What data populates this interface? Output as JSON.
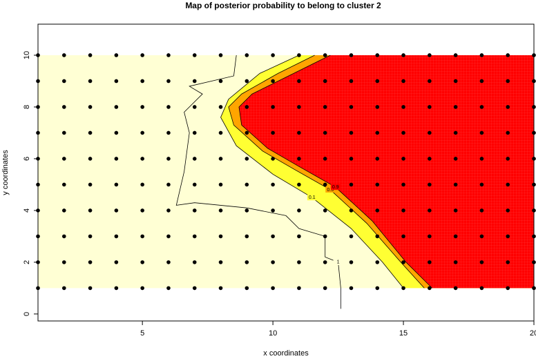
{
  "chart_data": {
    "type": "contour",
    "title": "Map of posterior probability to belong to cluster  2",
    "x_label": "x coordinates",
    "y_label": "y coordinates",
    "xlim": [
      1,
      20
    ],
    "ylim": [
      -0.27,
      11.2
    ],
    "xticks": [
      5,
      10,
      15,
      20
    ],
    "yticks": [
      0,
      2,
      4,
      6,
      8,
      10
    ],
    "grid_x": [
      1,
      2,
      3,
      4,
      5,
      6,
      7,
      8,
      9,
      10,
      11,
      12,
      13,
      14,
      15,
      16,
      17,
      18,
      19,
      20
    ],
    "grid_y": [
      1,
      2,
      3,
      4,
      5,
      6,
      7,
      8,
      9,
      10
    ],
    "point_color": "#000000",
    "background_color": "#ffffd4",
    "contours": [
      {
        "level": 0.1,
        "color": "#ffff33",
        "x": [
          11,
          9.5,
          8.3,
          8,
          8.6,
          10,
          11.5,
          13,
          14.2,
          15
        ],
        "y": [
          10,
          9.3,
          8.3,
          7.6,
          6.5,
          5.4,
          4.5,
          3.3,
          2,
          1
        ]
      },
      {
        "level": 0.5,
        "color": "#ffa500",
        "x": [
          11.6,
          10.2,
          8.8,
          8.3,
          8.5,
          9.6,
          10.8,
          12.2,
          13.6,
          14.9,
          15.8
        ],
        "y": [
          10,
          9.3,
          8.5,
          8,
          7.3,
          6.3,
          5.6,
          4.8,
          3.5,
          2,
          1
        ]
      },
      {
        "level": 0.9,
        "color": "#ff0000",
        "x": [
          12.2,
          10.8,
          9.2,
          8.7,
          8.8,
          9.8,
          11,
          12.4,
          13.8,
          15.1,
          16.1
        ],
        "y": [
          10,
          9.3,
          8.5,
          8,
          7.3,
          6.4,
          5.7,
          4.9,
          3.6,
          2,
          1
        ]
      },
      {
        "level": 1,
        "color": "none",
        "x": [
          8.6,
          8.5,
          6.8,
          7.3,
          6.6,
          6.8,
          6.6,
          6.3,
          7,
          8,
          9,
          10.5,
          11,
          12,
          12,
          12.5,
          12.6,
          12.6
        ],
        "y": [
          10,
          9.2,
          8.8,
          8.5,
          7.8,
          7,
          5.5,
          4.2,
          4.3,
          4.2,
          4.1,
          3.8,
          3.3,
          3,
          2.2,
          2,
          1,
          0.2
        ]
      }
    ]
  }
}
